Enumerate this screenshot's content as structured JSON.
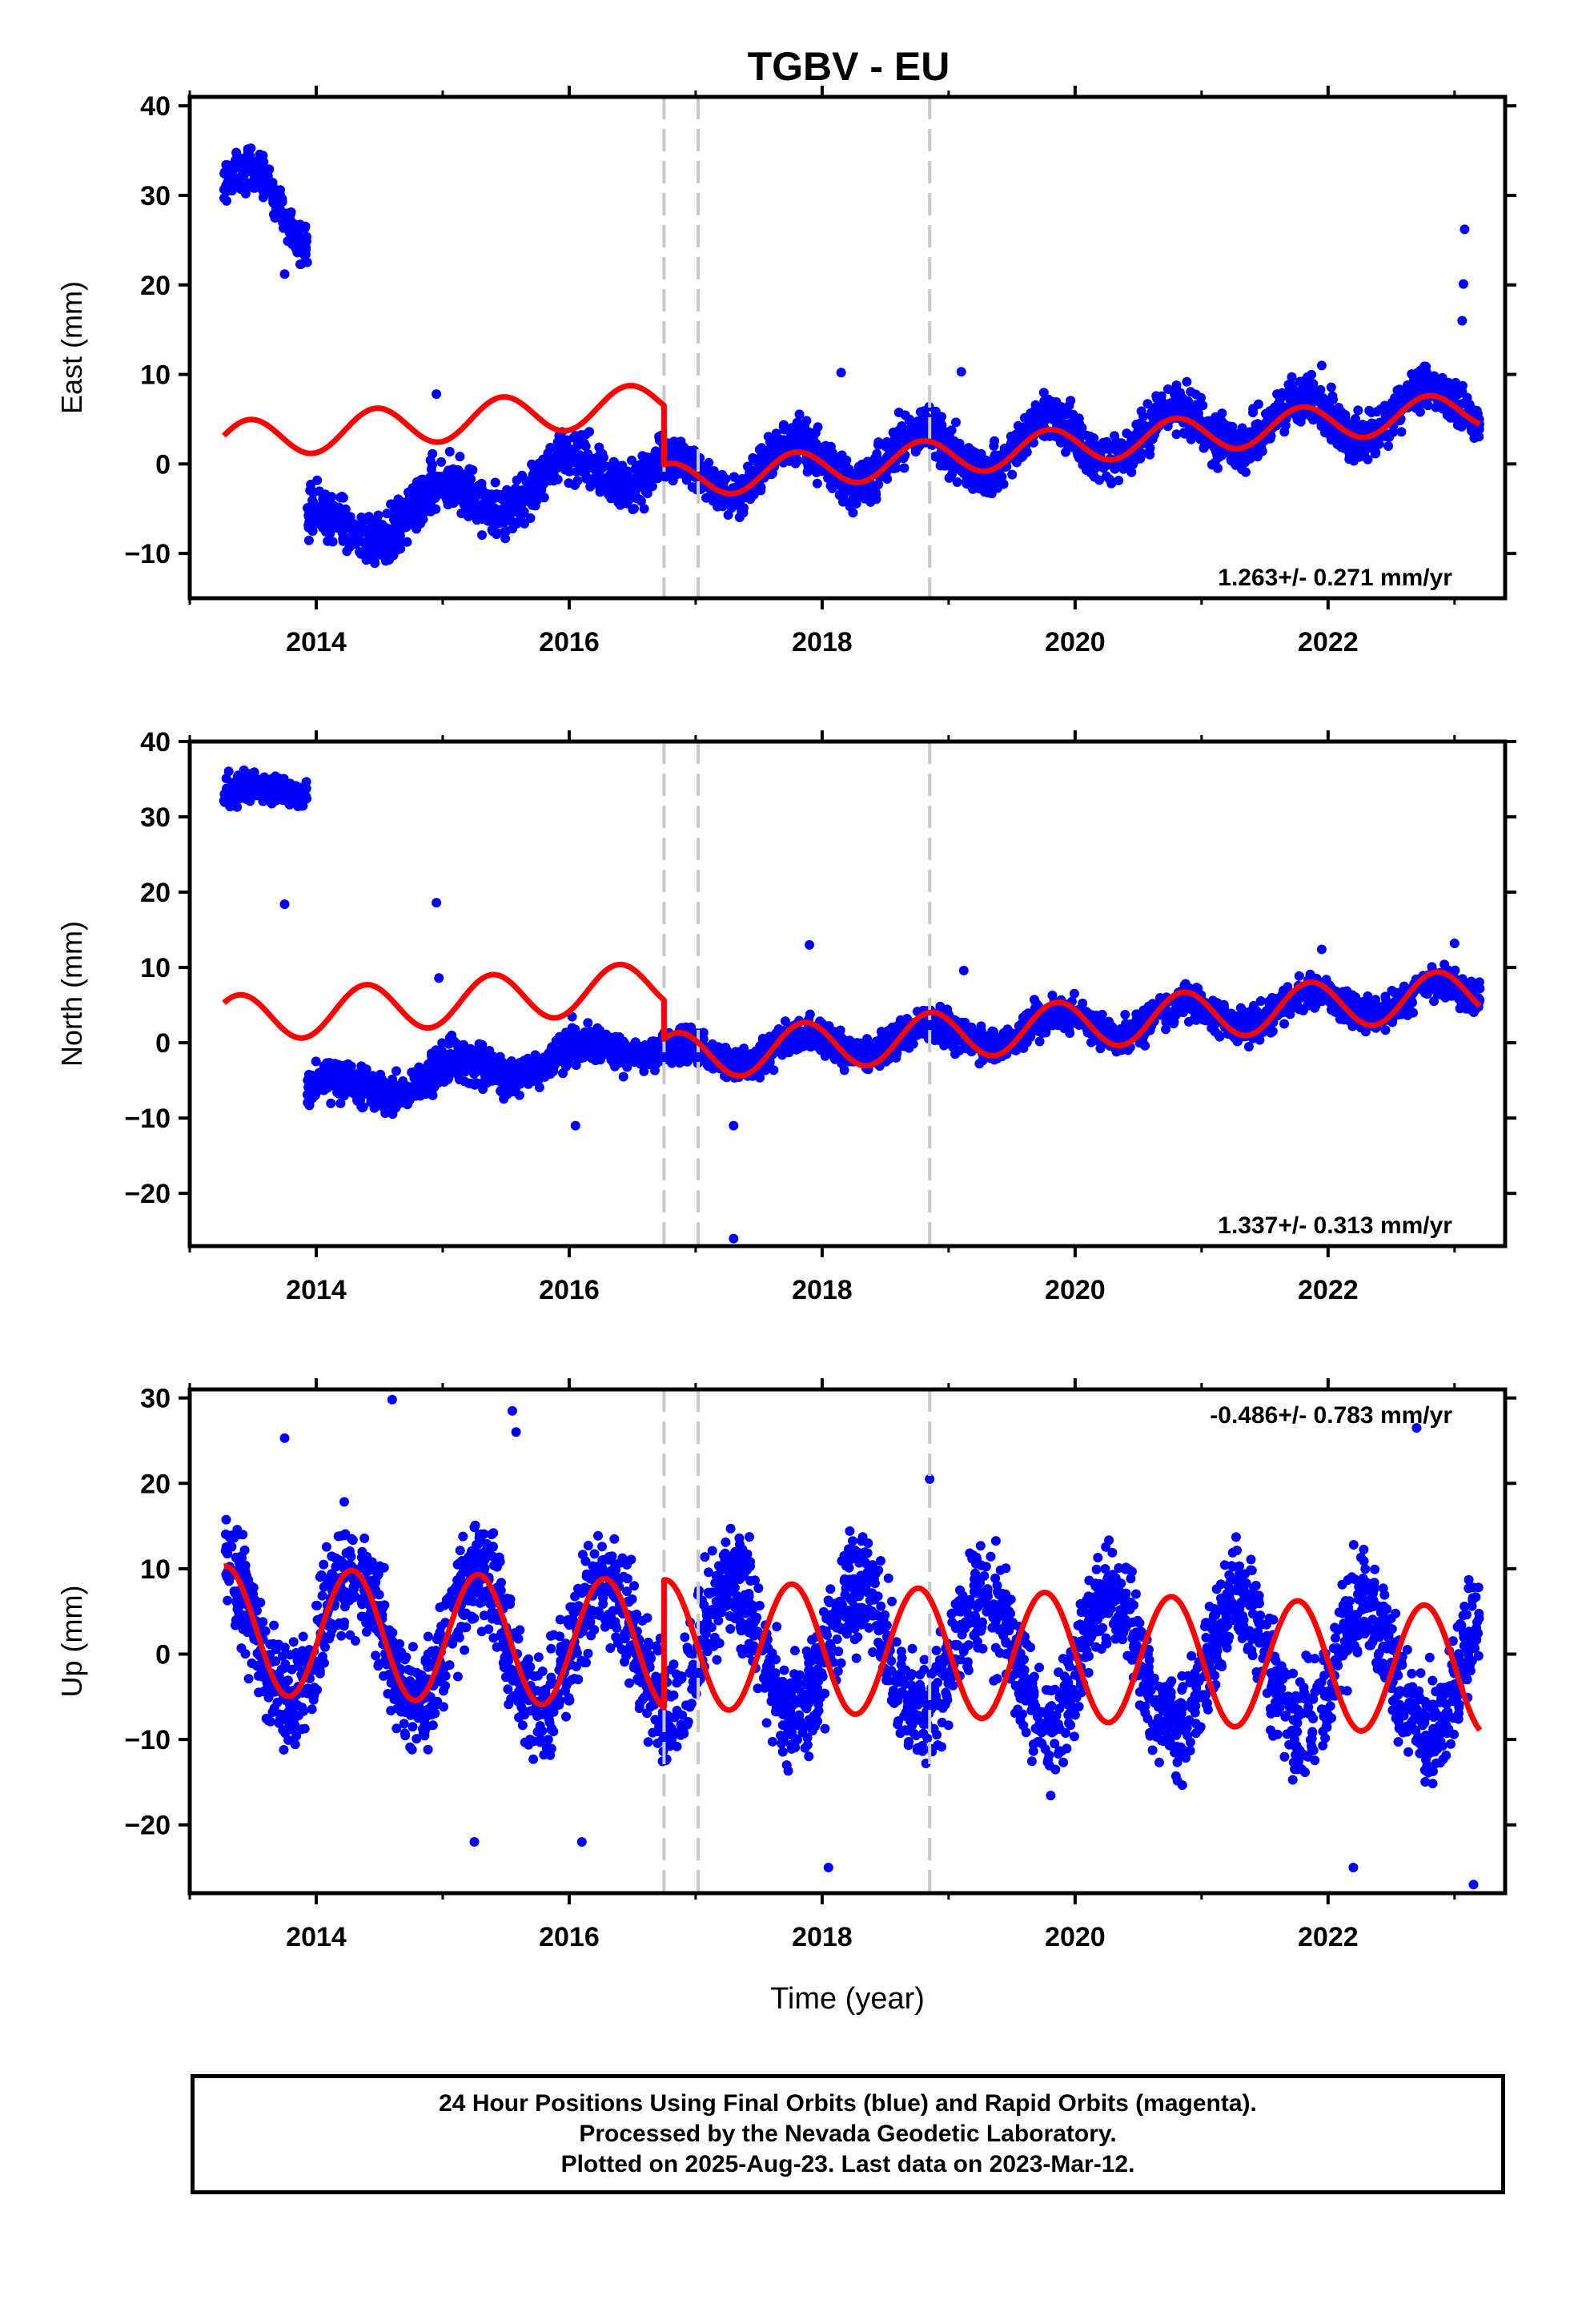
{
  "title": "TGBV - EU",
  "chart_data": [
    {
      "type": "scatter",
      "ylabel": "East (mm)",
      "xlabel": "",
      "xlim": [
        2013.0,
        2023.4
      ],
      "ylim": [
        -15,
        41
      ],
      "yticks": [
        40,
        30,
        20,
        10,
        0,
        -10
      ],
      "xticks": [
        2014,
        2016,
        2018,
        2020,
        2022
      ],
      "rate_text": "1.263+/- 0.271 mm/yr",
      "rate_position": "bottom-right",
      "breaks": [
        2016.75,
        2017.02,
        2018.85
      ],
      "point_color": "#0000ff",
      "fit_color": "#ff0000",
      "model": {
        "segments": [
          {
            "from": 2013.27,
            "to": 2013.93,
            "level": 31.5,
            "trend": -8.0,
            "amp": 3.0,
            "phase": 0.0,
            "noise": 1.6
          },
          {
            "from": 2013.93,
            "to": 2016.75,
            "level": -8.0,
            "trend": 3.2,
            "amp": 2.5,
            "phase": 1.2,
            "noise": 2.0
          },
          {
            "from": 2016.75,
            "to": 2023.2,
            "level": -1.5,
            "trend": 1.26,
            "amp": 2.6,
            "phase": 1.4,
            "noise": 1.8
          }
        ]
      },
      "fit": {
        "segments": [
          {
            "from": 2013.27,
            "to": 2016.75,
            "level": 2.5,
            "trend": 1.26,
            "amp": 2.2,
            "phase": 0.3
          },
          {
            "from": 2016.75,
            "to": 2023.2,
            "level": -2.0,
            "trend": 1.26,
            "amp": 2.0,
            "phase": 1.3
          }
        ]
      },
      "outliers": [
        [
          2013.75,
          21.2
        ],
        [
          2014.95,
          7.8
        ],
        [
          2023.08,
          26.2
        ],
        [
          2023.07,
          20.1
        ],
        [
          2023.06,
          16.0
        ],
        [
          2018.15,
          10.2
        ],
        [
          2019.1,
          10.3
        ],
        [
          2021.95,
          11.0
        ]
      ]
    },
    {
      "type": "scatter",
      "ylabel": "North (mm)",
      "xlabel": "",
      "xlim": [
        2013.0,
        2023.4
      ],
      "ylim": [
        -27,
        40
      ],
      "yticks": [
        40,
        30,
        20,
        10,
        0,
        -10,
        -20
      ],
      "xticks": [
        2014,
        2016,
        2018,
        2020,
        2022
      ],
      "rate_text": "1.337+/- 0.313 mm/yr",
      "rate_position": "bottom-right",
      "breaks": [
        2016.75,
        2017.02,
        2018.85
      ],
      "point_color": "#0000ff",
      "fit_color": "#ff0000",
      "model": {
        "segments": [
          {
            "from": 2013.27,
            "to": 2013.93,
            "level": 32.5,
            "trend": 2.0,
            "amp": 1.2,
            "phase": 0.5,
            "noise": 1.3
          },
          {
            "from": 2013.93,
            "to": 2016.75,
            "level": -7.0,
            "trend": 2.5,
            "amp": 1.6,
            "phase": 0.5,
            "noise": 1.8
          },
          {
            "from": 2016.75,
            "to": 2023.2,
            "level": -2.0,
            "trend": 1.34,
            "amp": 1.8,
            "phase": 0.9,
            "noise": 1.6
          }
        ]
      },
      "fit": {
        "segments": [
          {
            "from": 2013.27,
            "to": 2016.75,
            "level": 3.0,
            "trend": 1.34,
            "amp": 3.2,
            "phase": 0.8
          },
          {
            "from": 2016.75,
            "to": 2023.2,
            "level": -2.0,
            "trend": 1.34,
            "amp": 3.2,
            "phase": 0.9
          }
        ]
      },
      "outliers": [
        [
          2013.75,
          18.4
        ],
        [
          2014.95,
          18.6
        ],
        [
          2014.97,
          8.6
        ],
        [
          2017.3,
          -26.0
        ],
        [
          2017.3,
          -11.0
        ],
        [
          2017.9,
          13.0
        ],
        [
          2019.12,
          9.6
        ],
        [
          2021.95,
          12.4
        ],
        [
          2023.0,
          13.2
        ],
        [
          2016.05,
          -11.0
        ]
      ]
    },
    {
      "type": "scatter",
      "ylabel": "Up (mm)",
      "xlabel": "Time (year)",
      "xlim": [
        2013.0,
        2023.4
      ],
      "ylim": [
        -28,
        31
      ],
      "yticks": [
        30,
        20,
        10,
        0,
        -10,
        -20
      ],
      "xticks": [
        2014,
        2016,
        2018,
        2020,
        2022
      ],
      "rate_text": "-0.486+/- 0.783 mm/yr",
      "rate_position": "top-right",
      "breaks": [
        2016.75,
        2017.02,
        2018.85
      ],
      "point_color": "#0000ff",
      "fit_color": "#ff0000",
      "model": {
        "segments": [
          {
            "from": 2013.27,
            "to": 2023.2,
            "level": 2.7,
            "trend": -0.49,
            "amp": 7.5,
            "phase": 1.5,
            "noise": 4.5
          }
        ]
      },
      "fit": {
        "segments": [
          {
            "from": 2013.27,
            "to": 2016.75,
            "level": 2.8,
            "trend": -0.49,
            "amp": 7.5,
            "phase": 1.5
          },
          {
            "from": 2016.75,
            "to": 2023.2,
            "level": 1.2,
            "trend": -0.49,
            "amp": 7.5,
            "phase": 1.5
          }
        ]
      },
      "outliers": [
        [
          2014.6,
          29.8
        ],
        [
          2015.55,
          28.5
        ],
        [
          2015.58,
          26.0
        ],
        [
          2022.7,
          26.5
        ],
        [
          2013.75,
          25.3
        ],
        [
          2023.15,
          -27.0
        ],
        [
          2022.2,
          -25.0
        ],
        [
          2018.05,
          -25.0
        ],
        [
          2016.1,
          -22.0
        ],
        [
          2015.25,
          -22.0
        ],
        [
          2018.85,
          20.5
        ]
      ]
    }
  ],
  "footer": {
    "line1": "24 Hour Positions Using Final Orbits (blue) and Rapid Orbits (magenta).",
    "line2": "Processed by the Nevada Geodetic Laboratory.",
    "line3": "Plotted on 2025-Aug-23. Last data on 2023-Mar-12."
  }
}
